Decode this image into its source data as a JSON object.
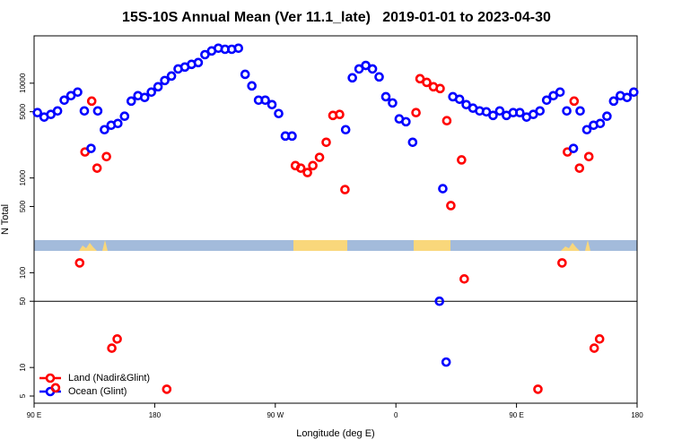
{
  "chart_data": {
    "type": "scatter",
    "title": "15S-10S Annual Mean (Ver 11.1_late)   2019-01-01 to 2023-04-30",
    "x_label": "Longitude (deg E)",
    "y_label": "N Total",
    "xlim": [
      90,
      540
    ],
    "xticks": [
      {
        "value": 90,
        "label": "90 E"
      },
      {
        "value": 180,
        "label": "180"
      },
      {
        "value": 270,
        "label": "90 W"
      },
      {
        "value": 360,
        "label": "0"
      },
      {
        "value": 450,
        "label": "90 E"
      },
      {
        "value": 540,
        "label": "180"
      }
    ],
    "ylim": [
      4.2,
      31600
    ],
    "yscale": "log",
    "yticks": [
      5,
      10,
      50,
      100,
      500,
      1000,
      5000,
      10000
    ],
    "hline": 50,
    "legend": "bottom-left",
    "series": [
      {
        "name": "Land (Nadir&Glint)",
        "color": "#ff0000",
        "x": [
          106,
          124,
          128,
          133,
          137,
          144,
          148,
          152,
          189,
          285,
          289,
          294,
          298,
          303,
          308,
          313,
          318,
          322,
          375,
          378,
          383,
          388,
          393,
          398,
          401,
          409,
          411,
          466,
          484,
          488,
          493,
          497,
          504,
          508,
          512
        ],
        "values": [
          6.1,
          127,
          1880,
          6470,
          1270,
          1680,
          16,
          20,
          5.9,
          1350,
          1270,
          1140,
          1350,
          1650,
          2380,
          4570,
          4680,
          754,
          4890,
          11150,
          10200,
          9170,
          8780,
          4020,
          511,
          1550,
          86,
          5.9,
          127,
          1880,
          6470,
          1270,
          1680,
          16,
          20
        ]
      },
      {
        "name": "Ocean (Glint)",
        "color": "#0000ff",
        "x": [
          92.5,
          97.5,
          102.5,
          107.5,
          112.5,
          117.5,
          122.5,
          127.5,
          132.5,
          137.5,
          142.5,
          147.5,
          152.5,
          157.5,
          162.5,
          167.5,
          172.5,
          177.5,
          182.5,
          187.5,
          192.5,
          197.5,
          202.5,
          207.5,
          212.5,
          217.5,
          222.5,
          227.5,
          232.5,
          237.5,
          242.5,
          247.5,
          252.5,
          257.5,
          262.5,
          267.5,
          272.5,
          277.5,
          282.5,
          322.5,
          327.5,
          332.5,
          337.5,
          342.5,
          347.5,
          352.5,
          357.5,
          362.5,
          367.5,
          372.5,
          392.5,
          395,
          397.5,
          402.5,
          407.5,
          412.5,
          417.5,
          422.5,
          427.5,
          432.5,
          437.5,
          442.5,
          447.5,
          452.5,
          457.5,
          462.5,
          467.5,
          472.5,
          477.5,
          482.5,
          487.5,
          492.5,
          497.5,
          502.5,
          507.5,
          512.5,
          517.5,
          522.5,
          527.5,
          532.5,
          537.5
        ],
        "values": [
          4890,
          4390,
          4680,
          5100,
          6620,
          7380,
          8050,
          5100,
          2050,
          5100,
          3230,
          3600,
          3760,
          4480,
          6470,
          7380,
          7070,
          8050,
          9170,
          10670,
          11900,
          14150,
          14800,
          15800,
          16500,
          20000,
          21900,
          23400,
          22800,
          22800,
          23400,
          12400,
          9370,
          6620,
          6620,
          5940,
          4780,
          2770,
          2770,
          3230,
          11400,
          14150,
          15400,
          14150,
          11650,
          7200,
          6190,
          4200,
          3920,
          2380,
          50,
          771,
          11.4,
          7200,
          6770,
          5940,
          5450,
          5100,
          4990,
          4570,
          5100,
          4570,
          4890,
          4890,
          4390,
          4680,
          5100,
          6620,
          7380,
          8050,
          5100,
          2050,
          5100,
          3230,
          3600,
          3760,
          4480,
          6470,
          7380,
          7070,
          8050
        ]
      }
    ]
  }
}
